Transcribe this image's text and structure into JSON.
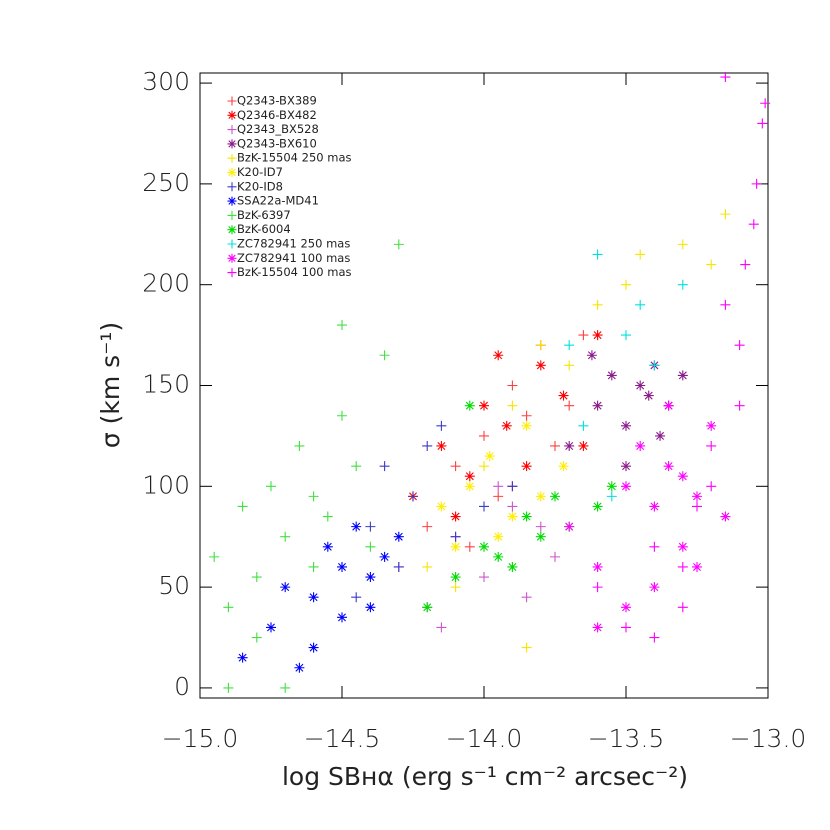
{
  "chart_data": {
    "type": "scatter",
    "x_label": "log SBʜα (erg s⁻¹ cm⁻² arcsec⁻²)",
    "y_label": "σ (km s⁻¹)",
    "xlim": [
      -15.0,
      -13.0
    ],
    "ylim": [
      -5,
      305
    ],
    "xticks": [
      {
        "value": -15.0,
        "label": "−15.0"
      },
      {
        "value": -14.5,
        "label": "−14.5"
      },
      {
        "value": -14.0,
        "label": "−14.0"
      },
      {
        "value": -13.5,
        "label": "−13.5"
      },
      {
        "value": -13.0,
        "label": "−13.0"
      }
    ],
    "yticks": [
      0,
      50,
      100,
      150,
      200,
      250,
      300
    ],
    "legend": "top-left",
    "series": [
      {
        "name": "Q2343-BX389",
        "color": "#ff4040",
        "marker": "plus",
        "x": [
          -14.2,
          -14.1,
          -14.0,
          -13.95,
          -13.9,
          -13.85,
          -13.8,
          -13.75,
          -13.7,
          -13.65,
          -14.05,
          -13.9
        ],
        "values": [
          80,
          110,
          125,
          95,
          150,
          135,
          170,
          120,
          140,
          175,
          70,
          100
        ]
      },
      {
        "name": "Q2346-BX482",
        "color": "#ff0000",
        "marker": "asterisk",
        "x": [
          -14.25,
          -14.15,
          -14.05,
          -14.0,
          -13.92,
          -13.85,
          -13.8,
          -13.72,
          -13.65,
          -13.6,
          -14.1,
          -13.95
        ],
        "values": [
          95,
          120,
          105,
          140,
          130,
          110,
          160,
          145,
          120,
          175,
          85,
          165
        ]
      },
      {
        "name": "Q2343_BX528",
        "color": "#cc55cc",
        "marker": "plus",
        "x": [
          -14.3,
          -14.2,
          -14.1,
          -14.0,
          -13.9,
          -13.8,
          -13.75,
          -14.15,
          -13.95,
          -13.85
        ],
        "values": [
          60,
          40,
          75,
          55,
          90,
          80,
          65,
          30,
          100,
          45
        ]
      },
      {
        "name": "Q2343-BX610",
        "color": "#8b1a8b",
        "marker": "asterisk",
        "x": [
          -13.7,
          -13.6,
          -13.55,
          -13.5,
          -13.45,
          -13.4,
          -13.35,
          -13.3,
          -13.5,
          -13.42,
          -13.38,
          -13.62
        ],
        "values": [
          120,
          140,
          155,
          130,
          150,
          160,
          140,
          155,
          110,
          145,
          125,
          165
        ]
      },
      {
        "name": "BzK-15504 250 mas",
        "color": "#f5e500",
        "marker": "plus",
        "x": [
          -14.2,
          -14.0,
          -13.9,
          -13.8,
          -13.7,
          -13.6,
          -13.5,
          -13.45,
          -13.3,
          -13.2,
          -13.15,
          -14.1,
          -13.85
        ],
        "values": [
          60,
          110,
          140,
          170,
          160,
          190,
          200,
          215,
          220,
          210,
          235,
          50,
          20
        ]
      },
      {
        "name": "K20-ID7",
        "color": "#ffee00",
        "marker": "asterisk",
        "x": [
          -14.15,
          -14.05,
          -13.98,
          -13.9,
          -13.85,
          -13.8,
          -13.72,
          -14.1,
          -13.95
        ],
        "values": [
          90,
          100,
          115,
          85,
          130,
          95,
          110,
          70,
          75
        ]
      },
      {
        "name": "K20-ID8",
        "color": "#3c3cc8",
        "marker": "plus",
        "x": [
          -14.4,
          -14.35,
          -14.3,
          -14.25,
          -14.2,
          -14.1,
          -14.0,
          -13.9,
          -14.45,
          -14.15
        ],
        "values": [
          80,
          110,
          60,
          95,
          120,
          75,
          90,
          100,
          45,
          130
        ]
      },
      {
        "name": "SSA22a-MD41",
        "color": "#0000ff",
        "marker": "asterisk",
        "x": [
          -14.85,
          -14.75,
          -14.7,
          -14.6,
          -14.55,
          -14.5,
          -14.45,
          -14.4,
          -14.35,
          -14.3,
          -14.6,
          -14.5,
          -14.4,
          -14.65
        ],
        "values": [
          15,
          30,
          50,
          45,
          70,
          60,
          80,
          55,
          65,
          75,
          20,
          35,
          40,
          10
        ]
      },
      {
        "name": "BzK-6397",
        "color": "#40e040",
        "marker": "plus",
        "x": [
          -14.95,
          -14.9,
          -14.85,
          -14.8,
          -14.75,
          -14.7,
          -14.65,
          -14.6,
          -14.55,
          -14.5,
          -14.45,
          -14.4,
          -14.35,
          -14.3,
          -14.5,
          -14.8,
          -14.6,
          -14.9,
          -14.7
        ],
        "values": [
          65,
          40,
          90,
          55,
          100,
          75,
          120,
          60,
          85,
          180,
          110,
          70,
          165,
          220,
          135,
          25,
          95,
          0,
          0
        ]
      },
      {
        "name": "BzK-6004",
        "color": "#00dd00",
        "marker": "asterisk",
        "x": [
          -14.2,
          -14.1,
          -14.0,
          -13.9,
          -13.85,
          -13.8,
          -13.75,
          -13.7,
          -13.6,
          -13.55,
          -14.05,
          -13.95
        ],
        "values": [
          40,
          55,
          70,
          60,
          85,
          75,
          95,
          80,
          90,
          100,
          140,
          65
        ]
      },
      {
        "name": "ZC782941 250 mas",
        "color": "#00e0e0",
        "marker": "plus",
        "x": [
          -13.7,
          -13.6,
          -13.5,
          -13.45,
          -13.4,
          -13.3,
          -13.55,
          -13.65
        ],
        "values": [
          170,
          215,
          175,
          190,
          160,
          200,
          95,
          130
        ]
      },
      {
        "name": "ZC782941 100 mas",
        "color": "#ff00ff",
        "marker": "asterisk",
        "x": [
          -13.7,
          -13.6,
          -13.5,
          -13.45,
          -13.4,
          -13.35,
          -13.3,
          -13.25,
          -13.2,
          -13.15,
          -13.5,
          -13.4,
          -13.3,
          -13.6,
          -13.25,
          -13.35
        ],
        "values": [
          80,
          60,
          100,
          120,
          90,
          110,
          70,
          95,
          130,
          85,
          40,
          50,
          105,
          30,
          60,
          140
        ]
      },
      {
        "name": "BzK-15504 100 mas",
        "color": "#ff00ff",
        "marker": "plus",
        "x": [
          -13.6,
          -13.5,
          -13.4,
          -13.3,
          -13.2,
          -13.15,
          -13.1,
          -13.05,
          -13.02,
          -13.01,
          -13.1,
          -13.2,
          -13.3,
          -13.4,
          -13.25,
          -13.15,
          -13.04,
          -13.08
        ],
        "values": [
          50,
          30,
          70,
          60,
          120,
          190,
          170,
          230,
          280,
          290,
          140,
          100,
          40,
          25,
          90,
          303,
          250,
          210
        ]
      }
    ]
  }
}
